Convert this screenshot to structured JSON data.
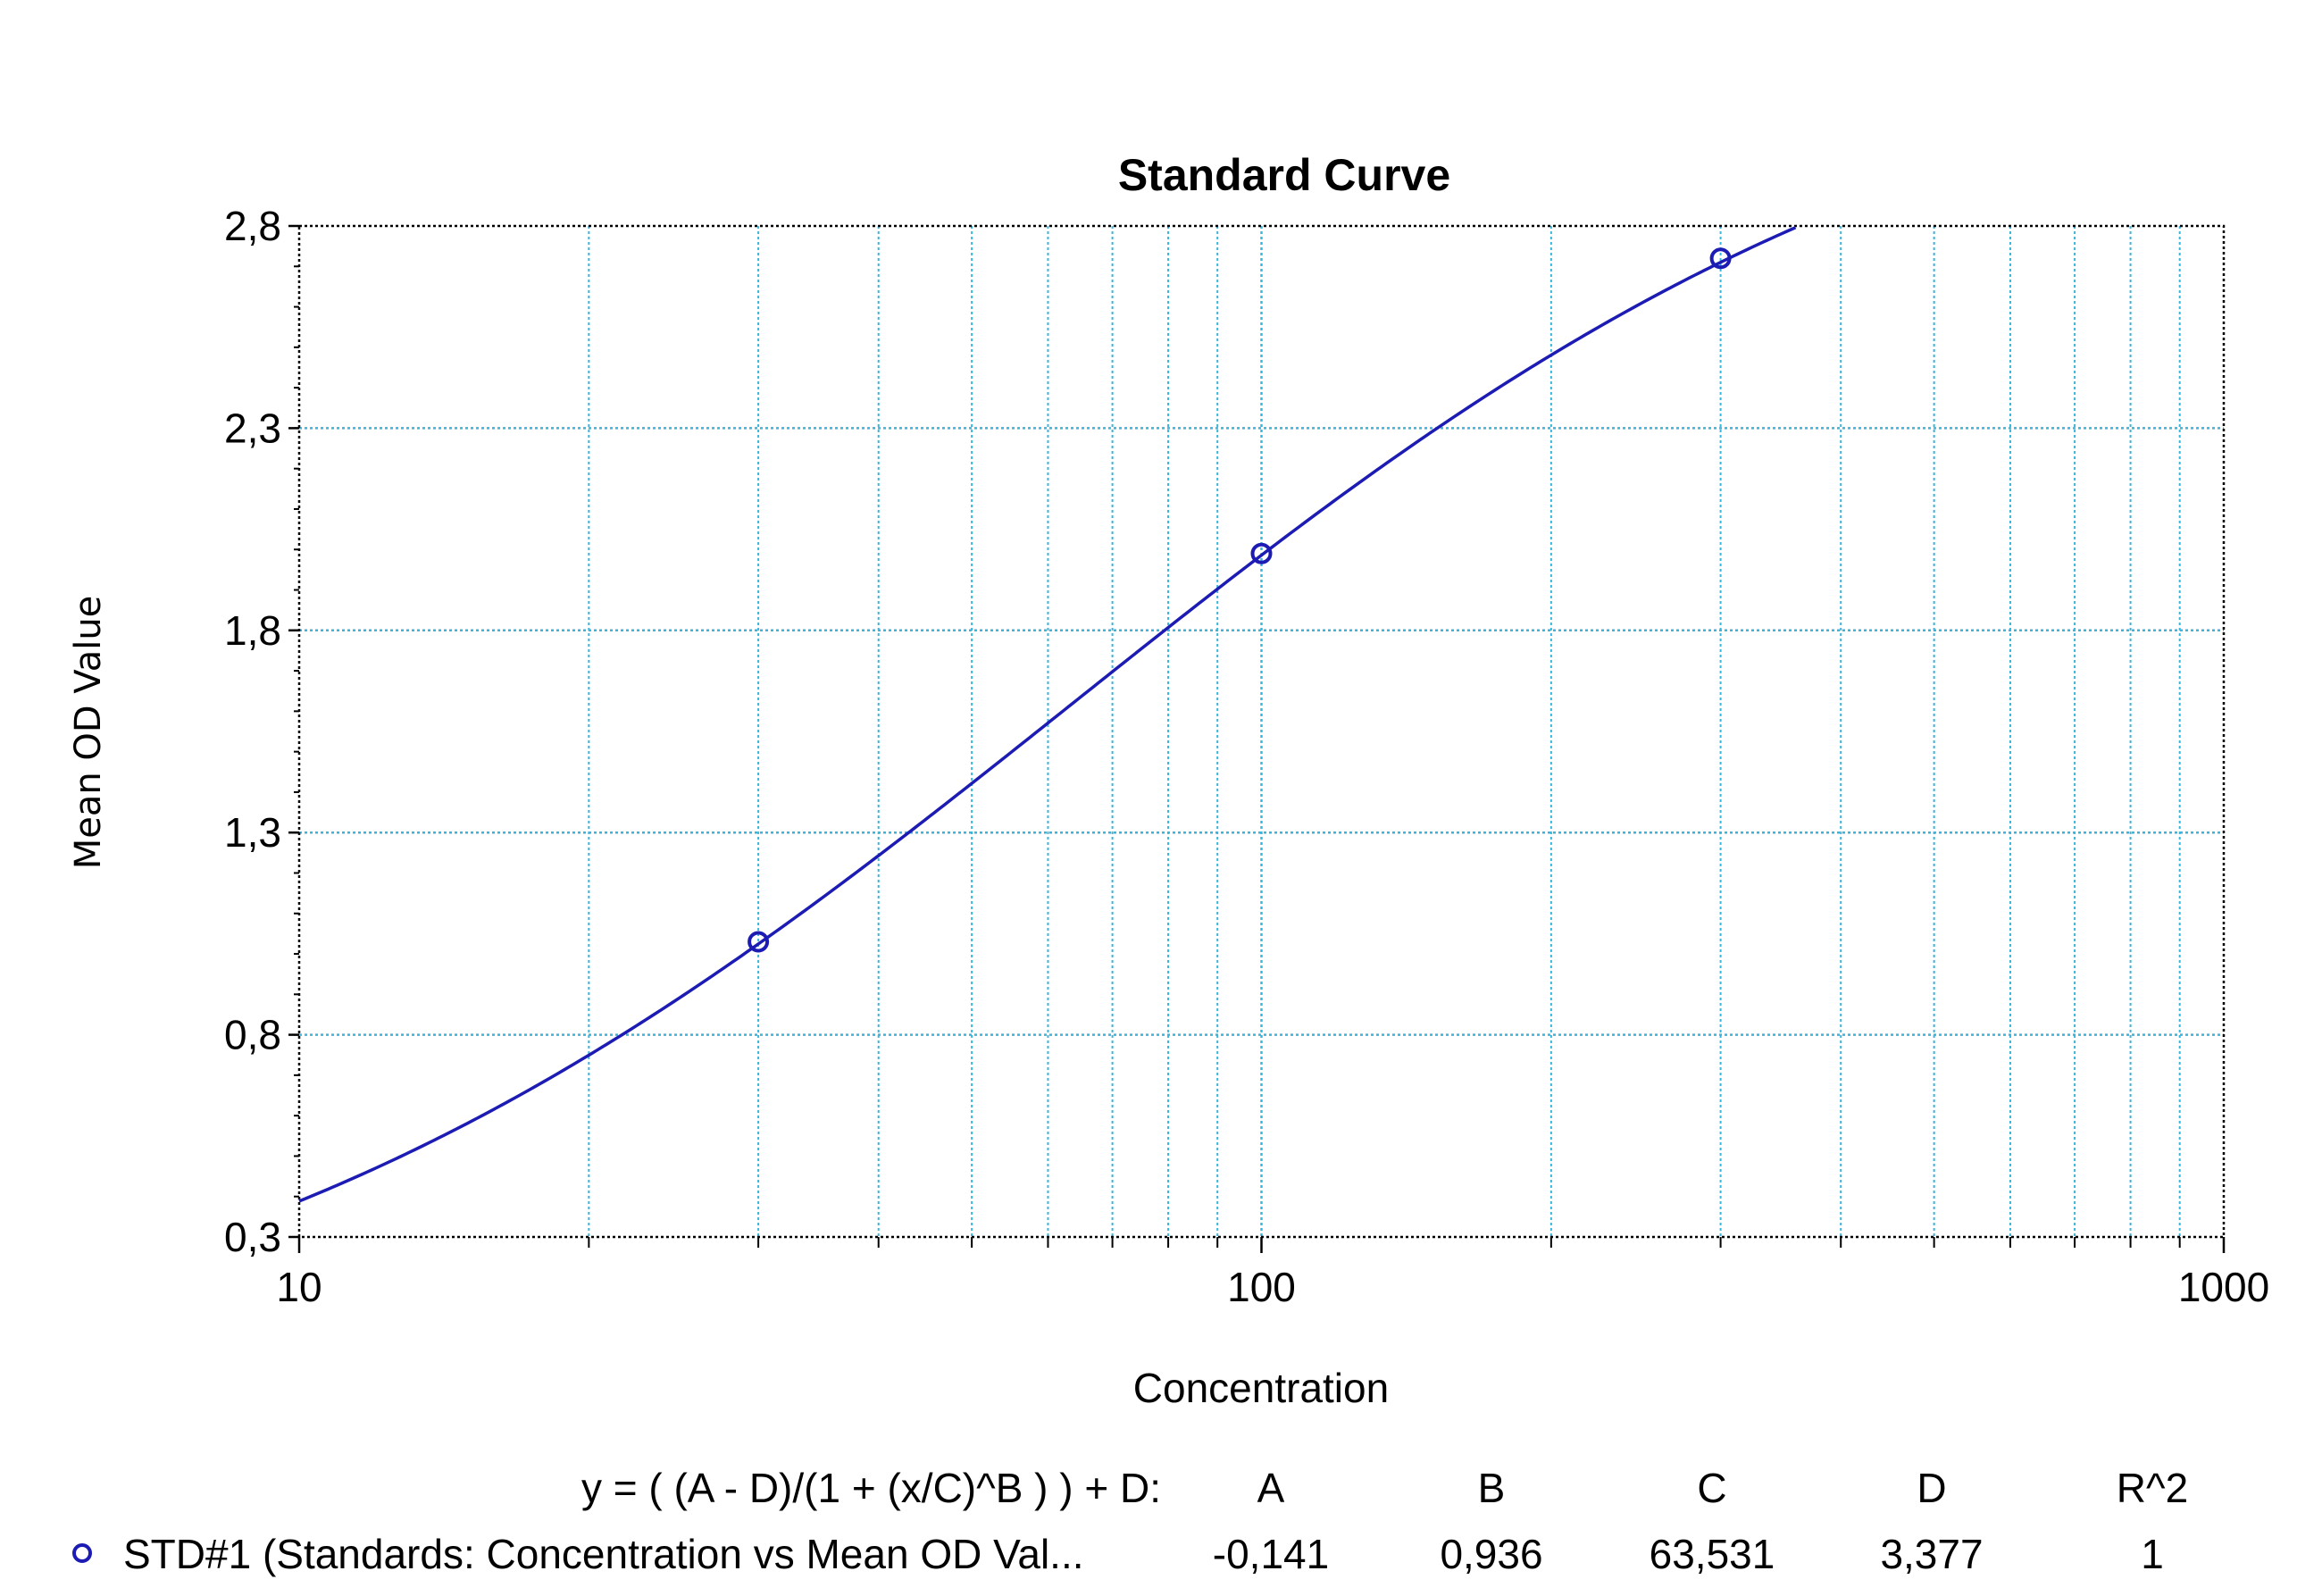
{
  "chart_data": {
    "type": "line",
    "title": "Standard Curve",
    "xlabel": "Concentration",
    "ylabel": "Mean OD Value",
    "x_scale": "log",
    "xlim": [
      10,
      1000
    ],
    "ylim": [
      0.3,
      2.8
    ],
    "x_ticks": [
      10,
      100,
      1000
    ],
    "x_tick_labels": [
      "10",
      "100",
      "1000"
    ],
    "y_ticks": [
      0.3,
      0.8,
      1.3,
      1.8,
      2.3,
      2.8
    ],
    "y_tick_labels": [
      "0,3",
      "0,8",
      "1,3",
      "1,8",
      "2,3",
      "2,8"
    ],
    "grid": true,
    "series": [
      {
        "name": "STD#1 (Standards: Concentration vs Mean OD Val...",
        "marker": "circle",
        "points": [
          {
            "x": 30,
            "y": 1.03
          },
          {
            "x": 100,
            "y": 1.99
          },
          {
            "x": 300,
            "y": 2.72
          }
        ],
        "fit": {
          "equation": "y = ( (A - D)/(1 + (x/C)^B ) ) + D:",
          "A": -0.141,
          "B": 0.936,
          "C": 63.531,
          "D": 3.377
        }
      }
    ],
    "legend": {
      "position": "bottom",
      "equation": "y = ( (A - D)/(1 + (x/C)^B ) ) + D:",
      "headers": [
        "A",
        "B",
        "C",
        "D",
        "R^2"
      ],
      "rows": [
        {
          "label": "STD#1 (Standards: Concentration vs Mean OD Val...",
          "values": [
            "-0,141",
            "0,936",
            "63,531",
            "3,377",
            "1"
          ]
        }
      ]
    },
    "colors": {
      "series": "#1c1cb4",
      "grid": "#38b6e0",
      "axis": "#000000"
    }
  }
}
